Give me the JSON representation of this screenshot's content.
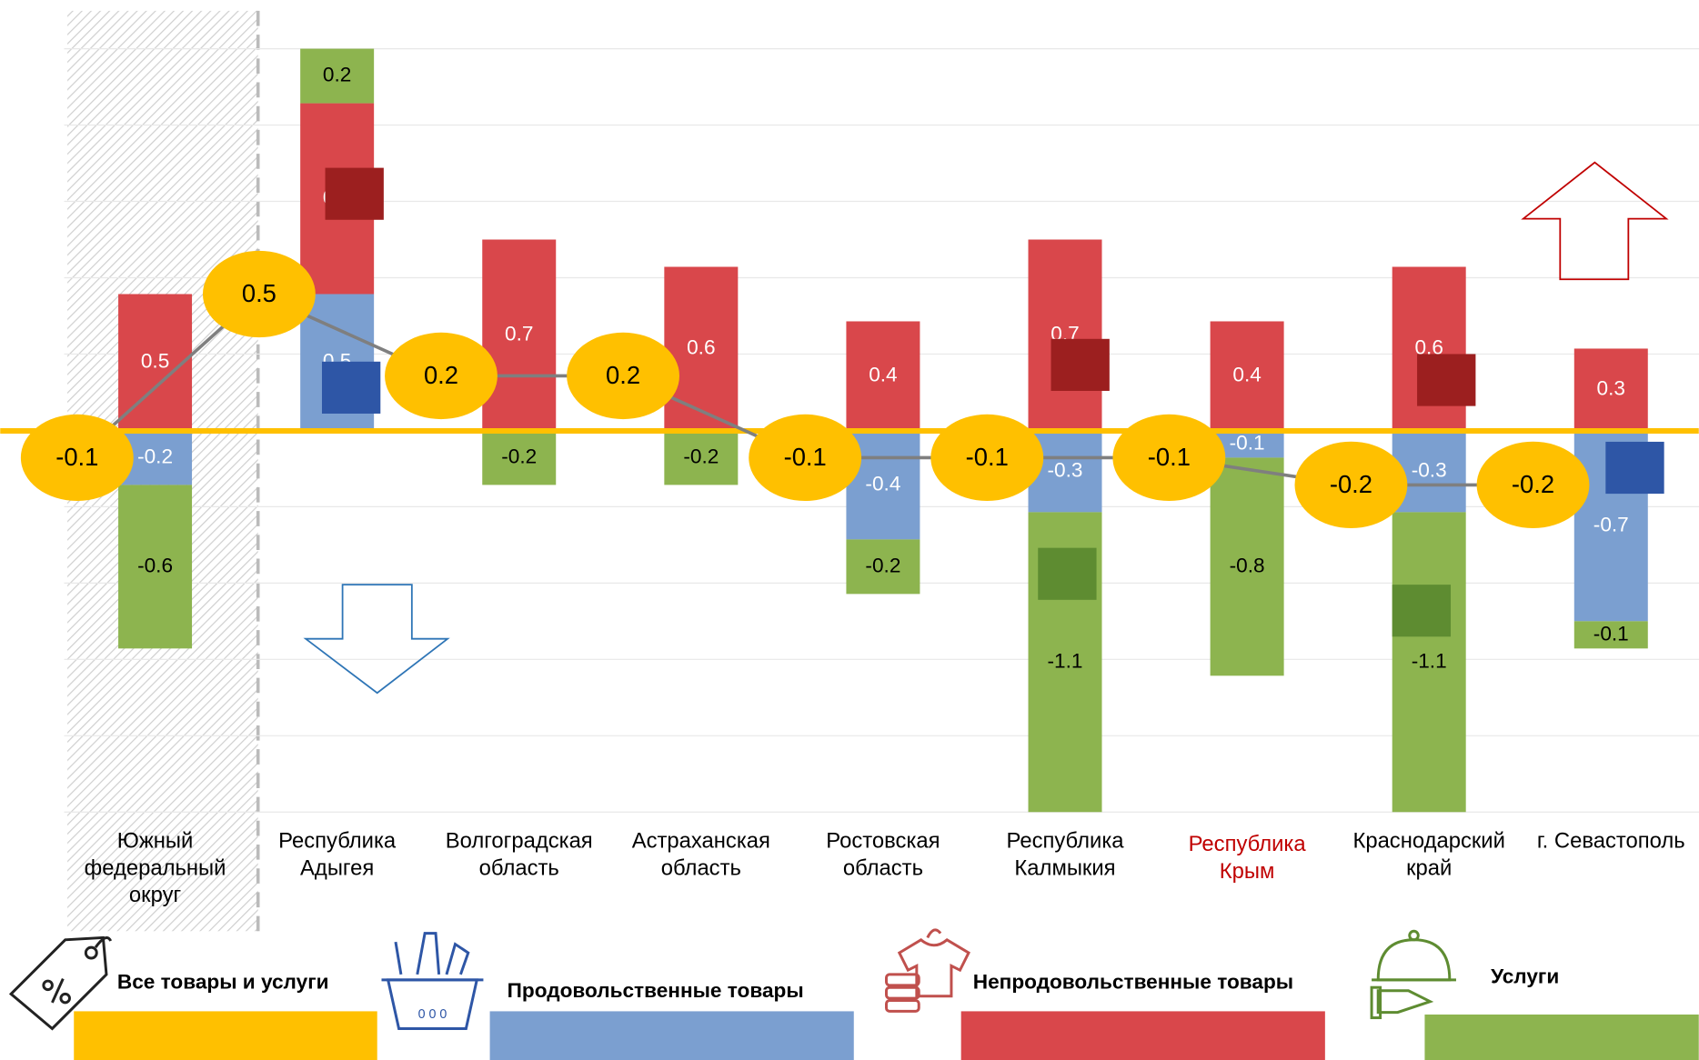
{
  "chart_data": {
    "type": "bar",
    "stacked": true,
    "categories": [
      "Южный федеральный округ",
      "Республика Адыгея",
      "Волгоградская область",
      "Астраханская область",
      "Ростовская область",
      "Республика Калмыкия",
      "Республика Крым",
      "Краснодарский край",
      "г. Севастополь"
    ],
    "category_colors": [
      "#000000",
      "#000000",
      "#000000",
      "#000000",
      "#000000",
      "#000000",
      "#c00000",
      "#000000",
      "#000000"
    ],
    "series": [
      {
        "name": "Продовольственные товары",
        "color": "#7b9fd0",
        "label_color": "#ffffff",
        "values": [
          -0.2,
          0.5,
          0.0,
          0.0,
          -0.4,
          -0.3,
          -0.1,
          -0.3,
          -0.7
        ],
        "value_labels": [
          "-0.2",
          "0.5",
          "0.0",
          "0.0",
          "-0.4",
          "-0.3",
          "-0.1",
          "-0.3",
          "-0.7"
        ]
      },
      {
        "name": "Непродовольственные товары",
        "color": "#d9474b",
        "label_color": "#ffffff",
        "values": [
          0.5,
          0.7,
          0.7,
          0.6,
          0.4,
          0.7,
          0.4,
          0.6,
          0.3
        ]
      },
      {
        "name": "Услуги",
        "color": "#8db44f",
        "label_color": "#000000",
        "values": [
          -0.6,
          0.2,
          -0.2,
          -0.2,
          -0.2,
          -1.1,
          -0.8,
          -1.1,
          -0.1
        ]
      }
    ],
    "total": {
      "name": "Все товары и услуги",
      "color": "#ffc000",
      "values": [
        -0.1,
        0.5,
        0.2,
        0.2,
        -0.1,
        -0.1,
        -0.1,
        -0.2,
        -0.2
      ]
    },
    "ylim": [
      -1.4,
      1.4
    ],
    "yticks": [
      -1.4,
      -1.12,
      -0.84,
      -0.56,
      -0.28,
      0,
      0.28,
      0.56,
      0.84,
      1.12,
      1.4
    ],
    "ytick_labels": false,
    "grid": true
  }
}
